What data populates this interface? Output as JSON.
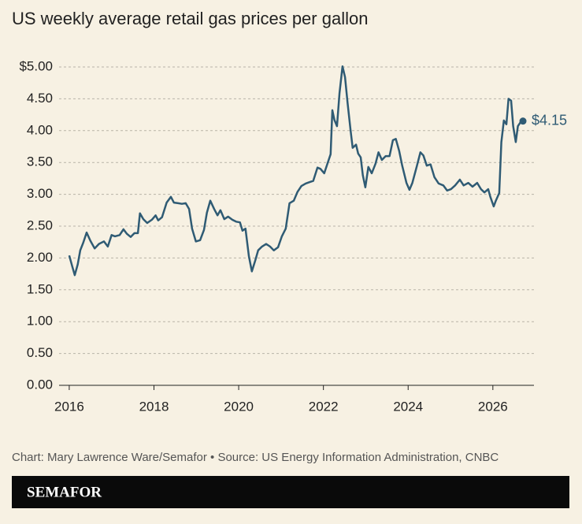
{
  "chart_data": {
    "type": "line",
    "title": "US weekly average retail gas prices per gallon",
    "x": [
      2016.0,
      2016.07,
      2016.13,
      2016.2,
      2016.26,
      2016.33,
      2016.41,
      2016.5,
      2016.6,
      2016.7,
      2016.82,
      2016.91,
      2017.0,
      2017.08,
      2017.19,
      2017.28,
      2017.36,
      2017.45,
      2017.54,
      2017.62,
      2017.67,
      2017.75,
      2017.84,
      2017.95,
      2018.04,
      2018.1,
      2018.19,
      2018.3,
      2018.4,
      2018.47,
      2018.57,
      2018.66,
      2018.75,
      2018.83,
      2018.9,
      2018.99,
      2019.09,
      2019.18,
      2019.25,
      2019.33,
      2019.42,
      2019.5,
      2019.57,
      2019.66,
      2019.75,
      2019.85,
      2019.94,
      2020.03,
      2020.09,
      2020.16,
      2020.24,
      2020.31,
      2020.39,
      2020.46,
      2020.55,
      2020.65,
      2020.74,
      2020.83,
      2020.93,
      2021.02,
      2021.11,
      2021.2,
      2021.3,
      2021.39,
      2021.48,
      2021.58,
      2021.67,
      2021.76,
      2021.86,
      2021.93,
      2022.02,
      2022.1,
      2022.17,
      2022.21,
      2022.26,
      2022.32,
      2022.38,
      2022.45,
      2022.51,
      2022.57,
      2022.64,
      2022.69,
      2022.77,
      2022.82,
      2022.88,
      2022.93,
      2022.99,
      2023.06,
      2023.14,
      2023.23,
      2023.3,
      2023.38,
      2023.47,
      2023.56,
      2023.64,
      2023.71,
      2023.79,
      2023.86,
      2023.96,
      2024.03,
      2024.1,
      2024.2,
      2024.29,
      2024.36,
      2024.44,
      2024.53,
      2024.62,
      2024.72,
      2024.83,
      2024.92,
      2025.01,
      2025.11,
      2025.22,
      2025.31,
      2025.42,
      2025.52,
      2025.63,
      2025.72,
      2025.8,
      2025.89,
      2025.94,
      2026.02,
      2026.07,
      2026.15,
      2026.2,
      2026.26,
      2026.32,
      2026.37,
      2026.43,
      2026.48,
      2026.54,
      2026.59,
      2026.65,
      2026.71
    ],
    "series": [
      {
        "color": "#2f5b74",
        "values": [
          2.04,
          1.87,
          1.73,
          1.9,
          2.12,
          2.24,
          2.4,
          2.27,
          2.15,
          2.22,
          2.26,
          2.18,
          2.36,
          2.34,
          2.36,
          2.45,
          2.38,
          2.33,
          2.39,
          2.39,
          2.7,
          2.61,
          2.55,
          2.6,
          2.67,
          2.59,
          2.64,
          2.87,
          2.96,
          2.87,
          2.86,
          2.85,
          2.86,
          2.77,
          2.46,
          2.26,
          2.28,
          2.44,
          2.71,
          2.9,
          2.77,
          2.67,
          2.75,
          2.61,
          2.65,
          2.6,
          2.57,
          2.56,
          2.43,
          2.46,
          2.03,
          1.79,
          1.96,
          2.12,
          2.18,
          2.22,
          2.18,
          2.12,
          2.17,
          2.34,
          2.46,
          2.86,
          2.9,
          3.04,
          3.13,
          3.17,
          3.19,
          3.21,
          3.42,
          3.4,
          3.33,
          3.49,
          3.63,
          4.32,
          4.17,
          4.07,
          4.59,
          5.01,
          4.84,
          4.44,
          4.01,
          3.73,
          3.78,
          3.64,
          3.58,
          3.3,
          3.11,
          3.43,
          3.33,
          3.48,
          3.66,
          3.54,
          3.6,
          3.6,
          3.85,
          3.87,
          3.68,
          3.45,
          3.18,
          3.07,
          3.18,
          3.43,
          3.66,
          3.61,
          3.45,
          3.47,
          3.27,
          3.17,
          3.14,
          3.06,
          3.08,
          3.14,
          3.23,
          3.14,
          3.18,
          3.12,
          3.18,
          3.08,
          3.03,
          3.08,
          2.96,
          2.81,
          2.9,
          3.02,
          3.82,
          4.16,
          4.1,
          4.5,
          4.47,
          4.07,
          3.82,
          4.07,
          4.13,
          4.15
        ],
        "value_labels": [
          null,
          null,
          null,
          null,
          null,
          null,
          null,
          null,
          null,
          null,
          null,
          null,
          null,
          null,
          null,
          null,
          null,
          null,
          null,
          null,
          null,
          null,
          null,
          null,
          null,
          null,
          null,
          null,
          null,
          null,
          null,
          null,
          null,
          null,
          null,
          null,
          null,
          null,
          null,
          null,
          null,
          null,
          null,
          null,
          null,
          null,
          null,
          null,
          null,
          null,
          null,
          null,
          null,
          null,
          null,
          null,
          null,
          null,
          null,
          null,
          null,
          null,
          null,
          null,
          null,
          null,
          null,
          null,
          null,
          null,
          null,
          null,
          null,
          null,
          null,
          null,
          null,
          null,
          null,
          null,
          null,
          null,
          null,
          null,
          null,
          null,
          null,
          null,
          null,
          null,
          null,
          null,
          null,
          null,
          null,
          null,
          null,
          null,
          null,
          null,
          null,
          null,
          null,
          null,
          null,
          null,
          null,
          null,
          null,
          null,
          null,
          null,
          null,
          null,
          null,
          null,
          null,
          null,
          null,
          null,
          null,
          null,
          null,
          null,
          null,
          null,
          null,
          null,
          null,
          null,
          null,
          null,
          null,
          "$4.15"
        ]
      }
    ],
    "xlim": [
      2015.76,
      2026.97
    ],
    "ylim": [
      0,
      5
    ],
    "xticks": [
      2016,
      2018,
      2020,
      2022,
      2024,
      2026
    ],
    "yticks": [
      {
        "value": 0,
        "label": "0.00"
      },
      {
        "value": 0.5,
        "label": "0.50"
      },
      {
        "value": 1,
        "label": "1.00"
      },
      {
        "value": 1.5,
        "label": "1.50"
      },
      {
        "value": 2,
        "label": "2.00"
      },
      {
        "value": 2.5,
        "label": "2.50"
      },
      {
        "value": 3,
        "label": "3.00"
      },
      {
        "value": 3.5,
        "label": "3.50"
      },
      {
        "value": 4,
        "label": "4.00"
      },
      {
        "value": 4.5,
        "label": "4.50"
      },
      {
        "value": 5,
        "label": "$5.00"
      }
    ],
    "grid": true
  },
  "footer": {
    "credit": "Chart: Mary Lawrence Ware/Semafor • Source: US Energy Information Administration, CNBC",
    "brand": "SEMAFOR"
  }
}
